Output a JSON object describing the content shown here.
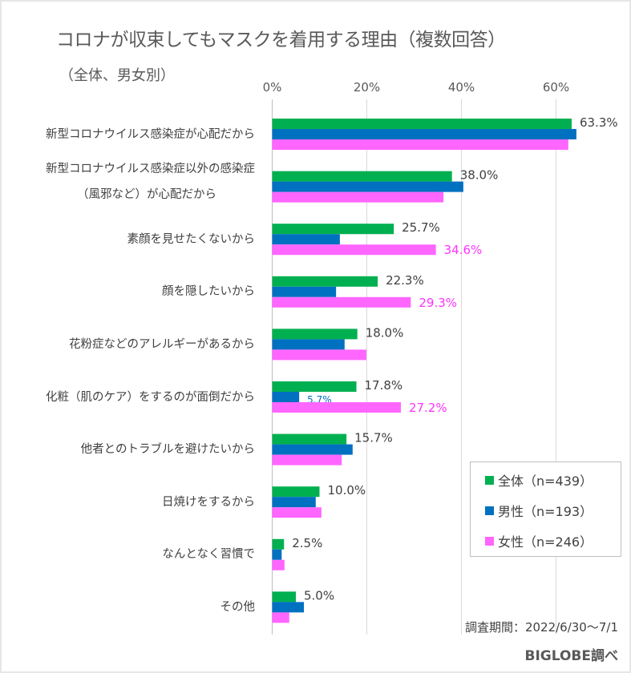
{
  "chart_data": {
    "type": "bar",
    "orientation": "horizontal",
    "title": "コロナが収束してもマスクを着用する理由（複数回答）",
    "subtitle": "（全体、男女別）",
    "xlabel": "",
    "ylabel": "",
    "xlim": [
      0,
      65
    ],
    "x_ticks": [
      "0%",
      "20%",
      "40%",
      "60%"
    ],
    "x_tick_values": [
      0,
      20,
      40,
      60
    ],
    "grid": "vertical",
    "legend_position": "bottom-right",
    "categories": [
      [
        "新型コロナウイルス感染症が心配だから"
      ],
      [
        "新型コロナウイルス感染症以外の感染症",
        "（風邪など）が心配だから"
      ],
      [
        "素顔を見せたくないから"
      ],
      [
        "顔を隠したいから"
      ],
      [
        "花粉症などのアレルギーがあるから"
      ],
      [
        "化粧（肌のケア）をするのが面倒だから"
      ],
      [
        "他者とのトラブルを避けたいから"
      ],
      [
        "日焼けをするから"
      ],
      [
        "なんとなく習慣で"
      ],
      [
        "その他"
      ]
    ],
    "series": [
      {
        "name": "全体（n=439）",
        "color": "#00b050",
        "values": [
          63.3,
          38.0,
          25.7,
          22.3,
          18.0,
          17.8,
          15.7,
          10.0,
          2.5,
          5.0
        ],
        "labels": [
          "63.3%",
          "38.0%",
          "25.7%",
          "22.3%",
          "18.0%",
          "17.8%",
          "15.7%",
          "10.0%",
          "2.5%",
          "5.0%"
        ],
        "label_color": "#404040"
      },
      {
        "name": "男性（n=193）",
        "color": "#0070c0",
        "values": [
          64.3,
          40.4,
          14.3,
          13.5,
          15.3,
          5.7,
          17.0,
          9.2,
          2.0,
          6.7
        ],
        "labels": [
          null,
          null,
          null,
          null,
          null,
          "5.7%",
          null,
          null,
          null,
          null
        ],
        "label_color": "#0070c0"
      },
      {
        "name": "女性（n=246）",
        "color": "#ff66ff",
        "values": [
          62.6,
          36.2,
          34.6,
          29.3,
          19.9,
          27.2,
          14.7,
          10.4,
          2.6,
          3.6
        ],
        "labels": [
          null,
          null,
          "34.6%",
          "29.3%",
          null,
          "27.2%",
          null,
          null,
          null,
          null
        ],
        "label_color": "#ff33ff"
      }
    ]
  },
  "footer": {
    "period": "調査期間：2022/6/30～7/1",
    "source": "BIGLOBE調べ"
  }
}
